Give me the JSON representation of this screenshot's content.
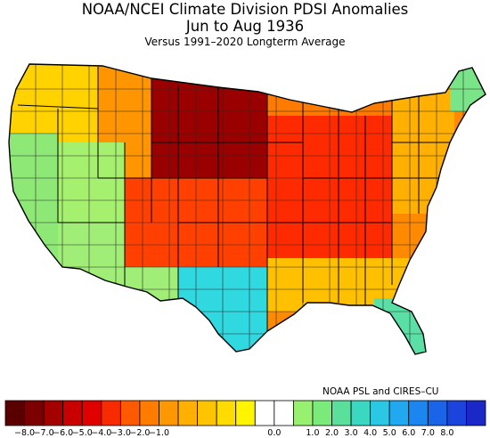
{
  "header": {
    "title": "NOAA/NCEI Climate Division PDSI Anomalies",
    "period": "Jun to Aug 1936",
    "subtitle": "Versus 1991–2020 Longterm Average"
  },
  "credit": "NOAA PSL and CIRES–CU",
  "colorbar": {
    "colors": [
      "#5a0000",
      "#7d0000",
      "#a30000",
      "#c80000",
      "#e10000",
      "#f82a00",
      "#ff5a00",
      "#ff7c00",
      "#ff9800",
      "#ffb000",
      "#ffc400",
      "#ffdc00",
      "#fff500",
      "#ffffff",
      "#ffffff",
      "#98f070",
      "#7aea7a",
      "#5ae09a",
      "#3ad8c0",
      "#2ac8e4",
      "#20a8f0",
      "#1c86f0",
      "#1a64e8",
      "#1a44dc",
      "#1a28c8"
    ],
    "tick_labels": [
      "−8.0",
      "−7.0",
      "−6.0",
      "−5.0",
      "−4.0",
      "−3.0",
      "−2.0",
      "−1.0",
      "0.0",
      "1.0",
      "2.0",
      "3.0",
      "4.0",
      "5.0",
      "6.0",
      "7.0",
      "8.0"
    ]
  },
  "map": {
    "outline_color": "#333333",
    "regions": [
      {
        "name": "pacific-northwest",
        "color": "#ffd200"
      },
      {
        "name": "northern-rockies",
        "color": "#ff9500"
      },
      {
        "name": "northern-plains-core",
        "color": "#9a0000"
      },
      {
        "name": "west-coast",
        "color": "#8ee876"
      },
      {
        "name": "great-basin",
        "color": "#a6f070"
      },
      {
        "name": "southwest",
        "color": "#a0ee78"
      },
      {
        "name": "central-plains",
        "color": "#ff4000"
      },
      {
        "name": "midwest",
        "color": "#ff2a00"
      },
      {
        "name": "great-lakes",
        "color": "#ff7a00"
      },
      {
        "name": "south-texas",
        "color": "#30d8e0"
      },
      {
        "name": "southeast",
        "color": "#ffc000"
      },
      {
        "name": "florida",
        "color": "#5ae0a6"
      },
      {
        "name": "northeast",
        "color": "#ffb000"
      },
      {
        "name": "maine",
        "color": "#7ae488"
      }
    ]
  }
}
